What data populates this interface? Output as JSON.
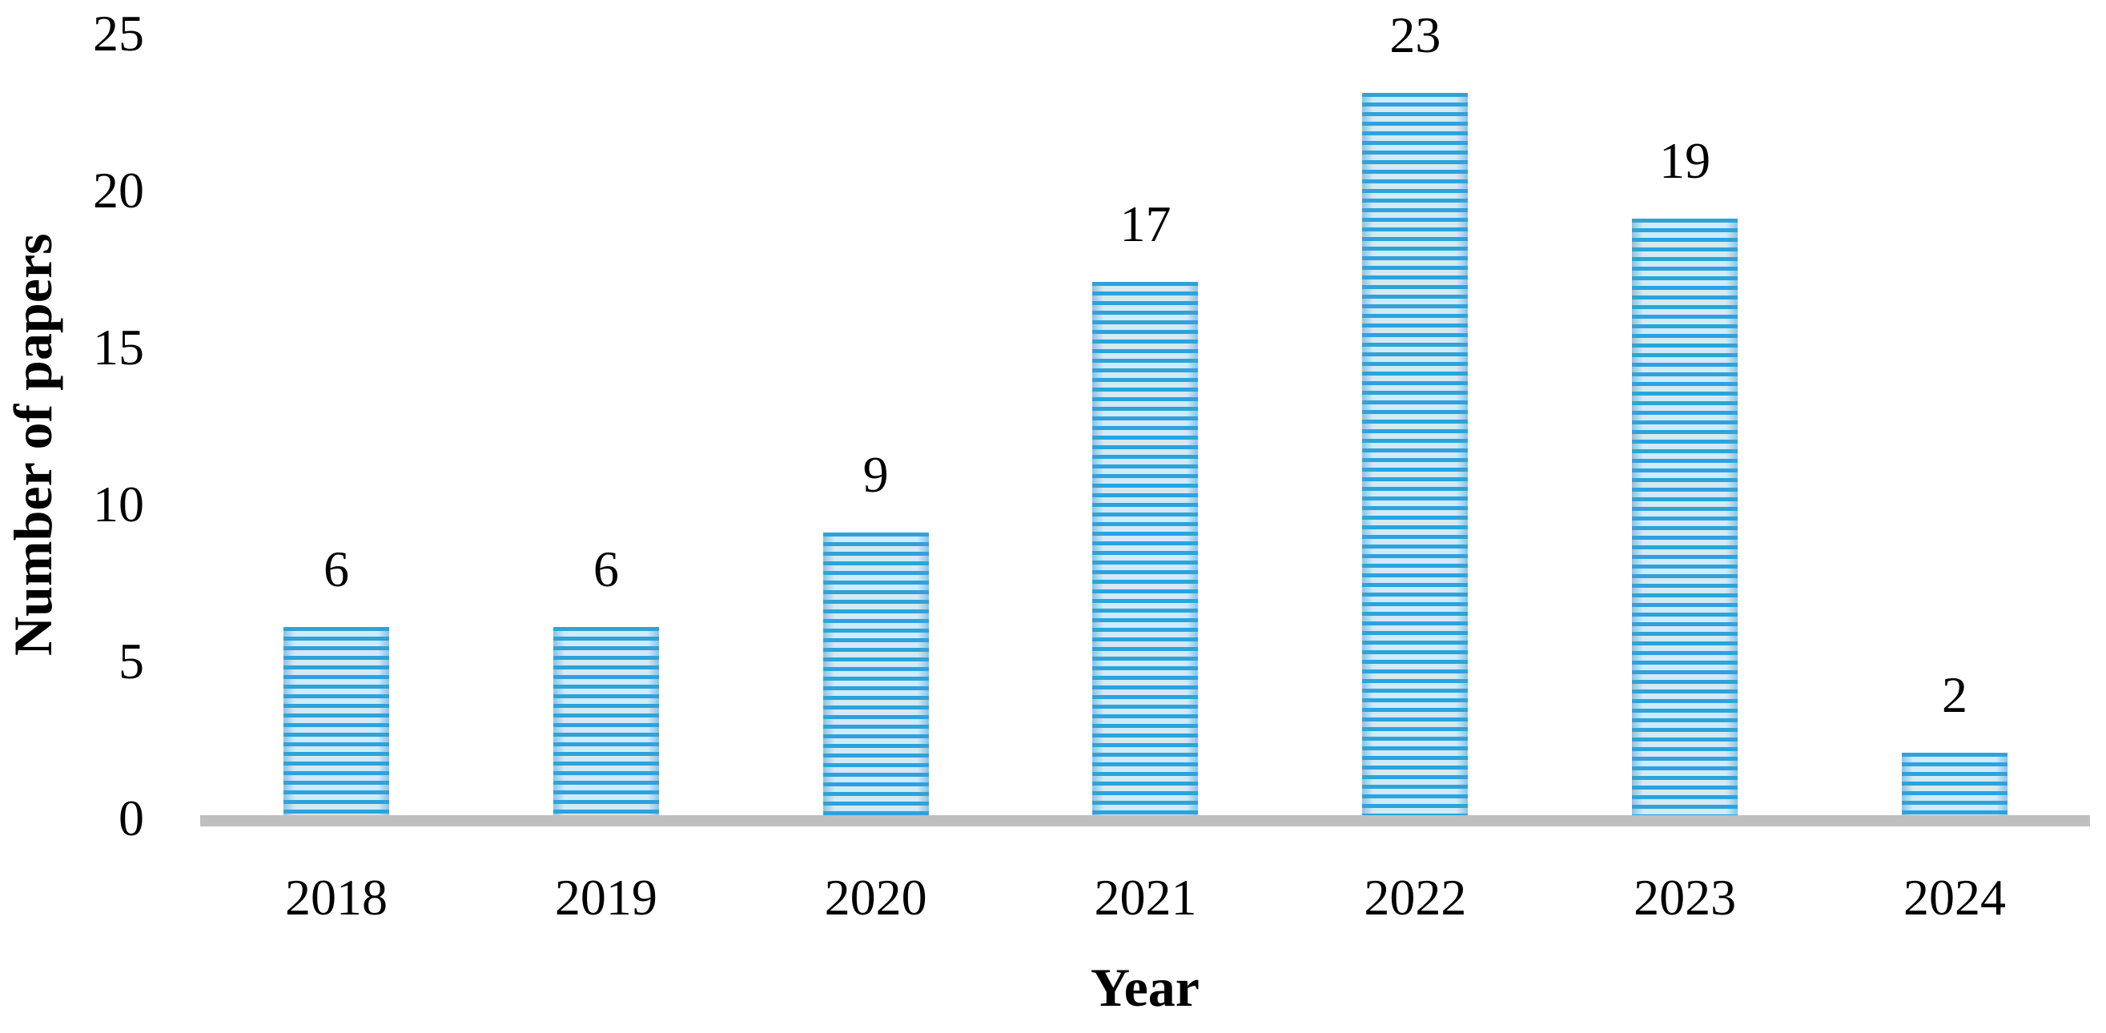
{
  "chart_data": {
    "type": "bar",
    "title": "",
    "categories": [
      "2018",
      "2019",
      "2020",
      "2021",
      "2022",
      "2023",
      "2024"
    ],
    "values": [
      6,
      6,
      9,
      17,
      23,
      19,
      2
    ],
    "data_labels_visible": true,
    "xlabel": "Year",
    "ylabel": "Number of papers",
    "yticks": [
      0,
      5,
      10,
      15,
      20,
      25
    ],
    "ylim": [
      0,
      25
    ],
    "grid": false,
    "legend": "none",
    "bar_pattern": "horizontal-stripes",
    "colors": {
      "bar_stripe_dark": "#2BA3DC",
      "bar_stripe_light": "#D3EAF7",
      "axis_line": "#BFBFBF",
      "text": "#000000",
      "background": "#FFFFFF"
    }
  }
}
